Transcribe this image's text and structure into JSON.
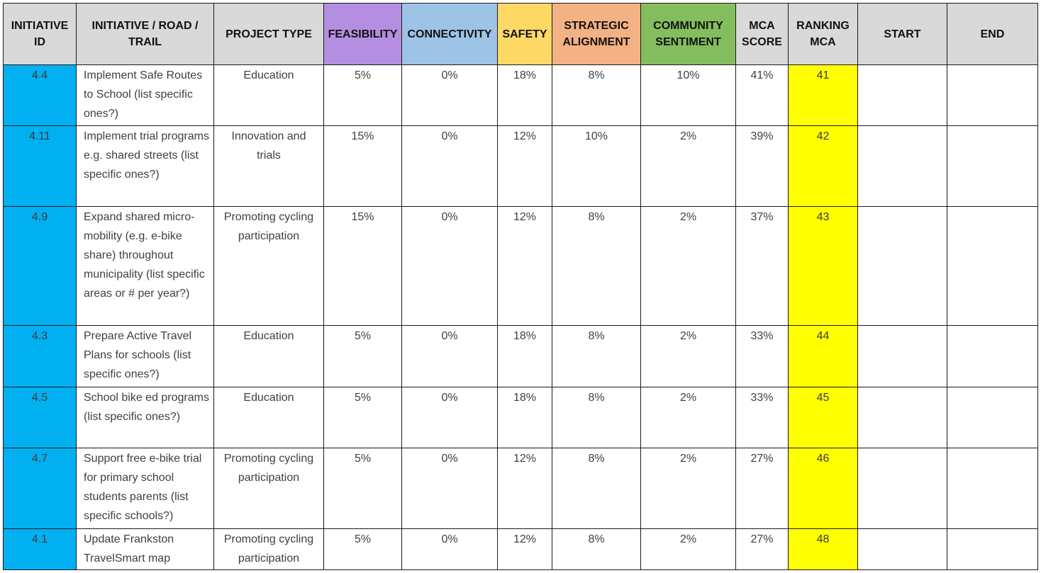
{
  "colors": {
    "header_default": "#d9d9d9",
    "feasibility": "#b48ee0",
    "connectivity": "#9dc3e6",
    "safety": "#ffd966",
    "strategic_alignment": "#f4b183",
    "community_sentiment": "#84bd5e",
    "id_cell": "#00b0f0",
    "ranking_cell": "#ffff00",
    "border": "#1a1a1a"
  },
  "headers": [
    {
      "key": "id",
      "label": "INITIATIVE ID",
      "color": "#d9d9d9"
    },
    {
      "key": "name",
      "label": "INITIATIVE / ROAD / TRAIL",
      "color": "#d9d9d9"
    },
    {
      "key": "type",
      "label": "PROJECT TYPE",
      "color": "#d9d9d9"
    },
    {
      "key": "feasibility",
      "label": "FEASIBILITY",
      "color": "#b48ee0"
    },
    {
      "key": "connectivity",
      "label": "CONNECTIVITY",
      "color": "#9dc3e6"
    },
    {
      "key": "safety",
      "label": "SAFETY",
      "color": "#ffd966"
    },
    {
      "key": "strategic",
      "label": "STRATEGIC ALIGNMENT",
      "color": "#f4b183"
    },
    {
      "key": "community",
      "label": "COMMUNITY SENTIMENT",
      "color": "#84bd5e"
    },
    {
      "key": "score",
      "label": "MCA SCORE",
      "color": "#d9d9d9"
    },
    {
      "key": "ranking",
      "label": "RANKING MCA",
      "color": "#d9d9d9"
    },
    {
      "key": "start",
      "label": "START",
      "color": "#d9d9d9"
    },
    {
      "key": "end",
      "label": "END",
      "color": "#d9d9d9"
    }
  ],
  "rows": [
    {
      "id": "4.4",
      "name": "Implement Safe Routes to School (list specific ones?)",
      "type": "Education",
      "feasibility": "5%",
      "connectivity": "0%",
      "safety": "18%",
      "strategic": "8%",
      "community": "10%",
      "score": "41%",
      "ranking": "41",
      "start": "",
      "end": ""
    },
    {
      "id": "4.11",
      "name": "Implement trial programs e.g. shared streets (list specific ones?)",
      "type": "Innovation and trials",
      "feasibility": "15%",
      "connectivity": "0%",
      "safety": "12%",
      "strategic": "10%",
      "community": "2%",
      "score": "39%",
      "ranking": "42",
      "start": "",
      "end": ""
    },
    {
      "id": "4.9",
      "name": "Expand shared micro-mobility (e.g. e-bike share) throughout municipality (list specific areas or # per year?)",
      "type": "Promoting cycling participation",
      "feasibility": "15%",
      "connectivity": "0%",
      "safety": "12%",
      "strategic": "8%",
      "community": "2%",
      "score": "37%",
      "ranking": "43",
      "start": "",
      "end": ""
    },
    {
      "id": "4.3",
      "name": "Prepare Active Travel Plans for schools (list specific ones?)",
      "type": "Education",
      "feasibility": "5%",
      "connectivity": "0%",
      "safety": "18%",
      "strategic": "8%",
      "community": "2%",
      "score": "33%",
      "ranking": "44",
      "start": "",
      "end": ""
    },
    {
      "id": "4.5",
      "name": "School bike ed programs (list specific ones?)",
      "type": "Education",
      "feasibility": "5%",
      "connectivity": "0%",
      "safety": "18%",
      "strategic": "8%",
      "community": "2%",
      "score": "33%",
      "ranking": "45",
      "start": "",
      "end": ""
    },
    {
      "id": "4.7",
      "name": "Support free e-bike trial for primary school students parents (list specific schools?)",
      "type": "Promoting cycling participation",
      "feasibility": "5%",
      "connectivity": "0%",
      "safety": "12%",
      "strategic": "8%",
      "community": "2%",
      "score": "27%",
      "ranking": "46",
      "start": "",
      "end": ""
    },
    {
      "id": "4.1",
      "name": "Update Frankston TravelSmart map",
      "type": "Promoting cycling participation",
      "feasibility": "5%",
      "connectivity": "0%",
      "safety": "12%",
      "strategic": "8%",
      "community": "2%",
      "score": "27%",
      "ranking": "48",
      "start": "",
      "end": ""
    }
  ]
}
